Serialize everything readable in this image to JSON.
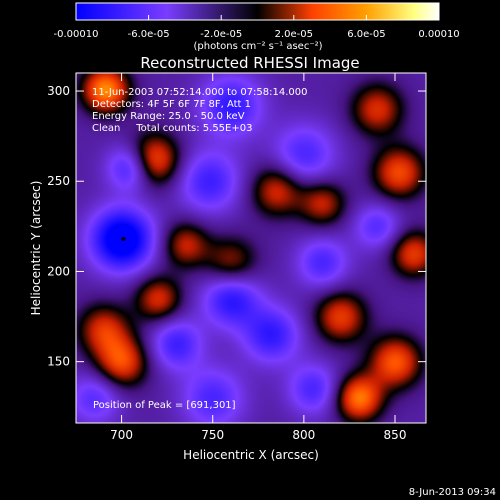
{
  "chart_data": {
    "type": "heatmap",
    "title": "Reconstructed RHESSI Image",
    "xlabel": "Heliocentric X (arcsec)",
    "ylabel": "Heliocentric Y (arcsec)",
    "xlim": [
      675,
      867
    ],
    "ylim": [
      116,
      310
    ],
    "x_ticks": [
      700,
      750,
      800,
      850
    ],
    "y_ticks": [
      150,
      200,
      250,
      300
    ],
    "colorbar": {
      "range": [
        -0.0001,
        0.0001
      ],
      "tick_values": [
        -0.0001,
        -6e-05,
        -2e-05,
        2e-05,
        6e-05,
        0.0001
      ],
      "tick_labels": [
        "-0.00010",
        "-6.0e-05",
        "-2.0e-05",
        "2.0e-05",
        "6.0e-05",
        "0.00010"
      ],
      "units_label": "(photons cm⁻² s⁻¹ asec⁻²)",
      "colors": [
        "#0000ff",
        "#7a3cff",
        "#000000",
        "#ff4000",
        "#ffa000",
        "#ffff80",
        "#ffffff"
      ]
    },
    "annotations": [
      "11-Jun-2003 07:52:14.000 to 07:58:14.000",
      "Detectors: 4F 5F 6F 7F 8F, Att 1",
      "Energy Range: 25.0 - 50.0 keV",
      "Clean     Total counts: 5.55E+03"
    ],
    "peak_label": "Position of Peak = [691,301]",
    "peak_position": [
      691,
      301
    ],
    "min_position": [
      701,
      218
    ],
    "features": [
      {
        "x": 691,
        "y": 301,
        "v": 0.85,
        "s": 9
      },
      {
        "x": 717,
        "y": 262,
        "v": 0.75,
        "s": 10
      },
      {
        "x": 760,
        "y": 292,
        "v": -0.55,
        "s": 12
      },
      {
        "x": 700,
        "y": 218,
        "v": -0.95,
        "s": 12
      },
      {
        "x": 705,
        "y": 258,
        "v": -0.6,
        "s": 9
      },
      {
        "x": 748,
        "y": 250,
        "v": -0.5,
        "s": 12
      },
      {
        "x": 785,
        "y": 245,
        "v": 0.55,
        "s": 10
      },
      {
        "x": 810,
        "y": 238,
        "v": 0.5,
        "s": 9
      },
      {
        "x": 852,
        "y": 255,
        "v": 0.65,
        "s": 10
      },
      {
        "x": 860,
        "y": 210,
        "v": 0.6,
        "s": 9
      },
      {
        "x": 840,
        "y": 290,
        "v": 0.55,
        "s": 10
      },
      {
        "x": 735,
        "y": 215,
        "v": 0.5,
        "s": 9
      },
      {
        "x": 760,
        "y": 205,
        "v": 0.45,
        "s": 10
      },
      {
        "x": 800,
        "y": 265,
        "v": -0.45,
        "s": 12
      },
      {
        "x": 760,
        "y": 185,
        "v": -0.6,
        "s": 11
      },
      {
        "x": 782,
        "y": 165,
        "v": -0.55,
        "s": 11
      },
      {
        "x": 720,
        "y": 185,
        "v": 0.55,
        "s": 9
      },
      {
        "x": 690,
        "y": 168,
        "v": 0.55,
        "s": 10
      },
      {
        "x": 700,
        "y": 150,
        "v": 0.65,
        "s": 10
      },
      {
        "x": 730,
        "y": 160,
        "v": -0.5,
        "s": 10
      },
      {
        "x": 820,
        "y": 175,
        "v": 0.6,
        "s": 10
      },
      {
        "x": 850,
        "y": 150,
        "v": 0.7,
        "s": 10
      },
      {
        "x": 830,
        "y": 130,
        "v": 0.8,
        "s": 9
      },
      {
        "x": 805,
        "y": 135,
        "v": -0.45,
        "s": 10
      },
      {
        "x": 750,
        "y": 130,
        "v": -0.45,
        "s": 12
      },
      {
        "x": 685,
        "y": 130,
        "v": -0.4,
        "s": 10
      },
      {
        "x": 810,
        "y": 205,
        "v": -0.45,
        "s": 10
      },
      {
        "x": 840,
        "y": 225,
        "v": -0.4,
        "s": 9
      }
    ]
  },
  "footer": {
    "timestamp": "8-Jun-2013 09:34"
  }
}
